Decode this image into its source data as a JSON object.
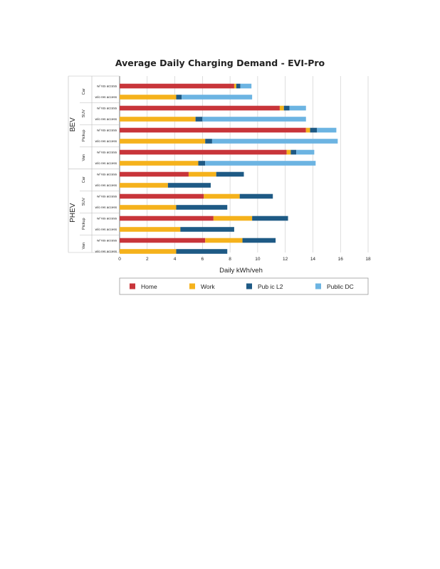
{
  "chart_data": {
    "type": "bar",
    "orientation": "horizontal",
    "stacked": true,
    "title": "Average Daily Charging Demand - EVI-Pro",
    "xlabel": "Daily kWh/veh",
    "ylabel": "",
    "xlim": [
      0,
      18
    ],
    "xticks": [
      "0",
      "2",
      "4",
      "6",
      "8",
      "10",
      "12",
      "14",
      "16",
      "18"
    ],
    "grid": true,
    "legend_position": "bottom",
    "categories": [
      {
        "group": "BEV",
        "vehicle": "Car",
        "access": "w/ res access"
      },
      {
        "group": "BEV",
        "vehicle": "Car",
        "access": "w/o res access"
      },
      {
        "group": "BEV",
        "vehicle": "SUV",
        "access": "w/ res access"
      },
      {
        "group": "BEV",
        "vehicle": "SUV",
        "access": "w/o res access"
      },
      {
        "group": "BEV",
        "vehicle": "Pickup",
        "access": "w/ res access"
      },
      {
        "group": "BEV",
        "vehicle": "Pickup",
        "access": "w/o res access"
      },
      {
        "group": "BEV",
        "vehicle": "Van",
        "access": "w/ res access"
      },
      {
        "group": "BEV",
        "vehicle": "Van",
        "access": "w/o res access"
      },
      {
        "group": "PHEV",
        "vehicle": "Car",
        "access": "w/ res access"
      },
      {
        "group": "PHEV",
        "vehicle": "Car",
        "access": "w/o res access"
      },
      {
        "group": "PHEV",
        "vehicle": "SUV",
        "access": "w/ res access"
      },
      {
        "group": "PHEV",
        "vehicle": "SUV",
        "access": "w/o res access"
      },
      {
        "group": "PHEV",
        "vehicle": "Pickup",
        "access": "w/ res access"
      },
      {
        "group": "PHEV",
        "vehicle": "Pickup",
        "access": "w/o res access"
      },
      {
        "group": "PHEV",
        "vehicle": "Van",
        "access": "w/ res access"
      },
      {
        "group": "PHEV",
        "vehicle": "Van",
        "access": "w/o res access"
      }
    ],
    "groups": [
      {
        "name": "BEV",
        "vehicles": [
          "Car",
          "SUV",
          "Pickup",
          "Van"
        ]
      },
      {
        "name": "PHEV",
        "vehicles": [
          "Car",
          "SUV",
          "Pickup",
          "Van"
        ]
      }
    ],
    "series": [
      {
        "name": "Home",
        "color": "#c8353a",
        "values": [
          8.3,
          0,
          11.6,
          0,
          13.5,
          0,
          12.1,
          0,
          5.0,
          0,
          6.1,
          0,
          6.8,
          0,
          6.2,
          0
        ]
      },
      {
        "name": "Work",
        "color": "#f5b21c",
        "values": [
          0.15,
          4.1,
          0.3,
          5.5,
          0.3,
          6.2,
          0.3,
          5.7,
          2.0,
          3.5,
          2.6,
          4.1,
          2.8,
          4.4,
          2.7,
          4.1
        ]
      },
      {
        "name": "Pub ic L2",
        "color": "#1e5a85",
        "values": [
          0.3,
          0.4,
          0.4,
          0.5,
          0.5,
          0.5,
          0.4,
          0.5,
          2.0,
          3.1,
          2.4,
          3.7,
          2.6,
          3.9,
          2.4,
          3.7
        ]
      },
      {
        "name": "Public DC",
        "color": "#6cb4e2",
        "values": [
          0.8,
          5.1,
          1.2,
          7.5,
          1.4,
          9.1,
          1.3,
          8.0,
          0,
          0,
          0,
          0,
          0,
          0,
          0,
          0
        ]
      }
    ]
  }
}
